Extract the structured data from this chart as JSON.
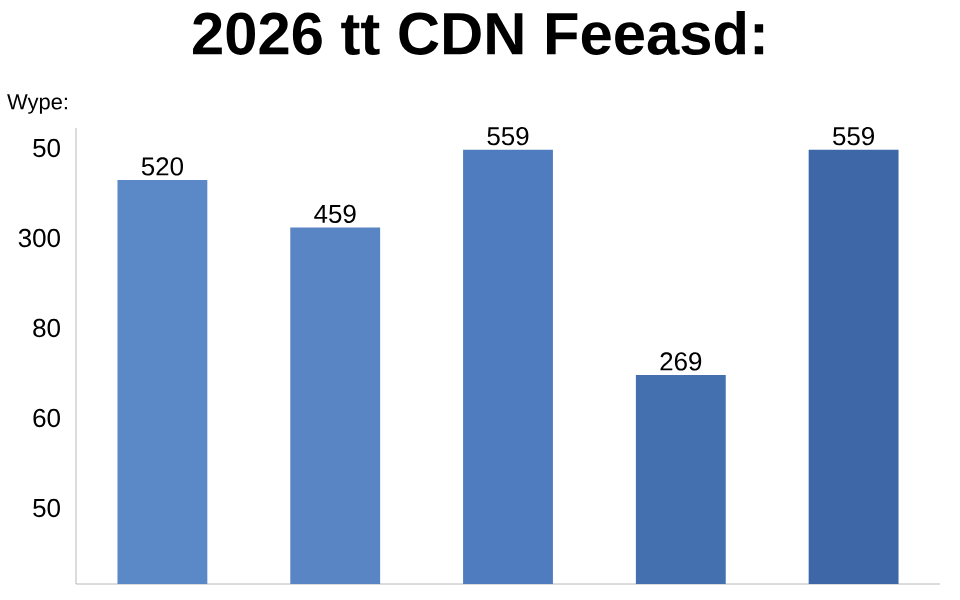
{
  "chart_data": {
    "type": "bar",
    "title": "2026 tt CDN Feeasd:",
    "ylabel": "Wype:",
    "categories": [
      null,
      null,
      null,
      null,
      null
    ],
    "values": [
      520,
      459,
      559,
      269,
      559
    ],
    "data_labels": true,
    "colors": [
      "#5b88c6",
      "#5985c4",
      "#4f7cbf",
      "#4470b0",
      "#3e67a7"
    ],
    "annotations": [
      "50",
      "300",
      "80",
      "60",
      "50"
    ]
  }
}
